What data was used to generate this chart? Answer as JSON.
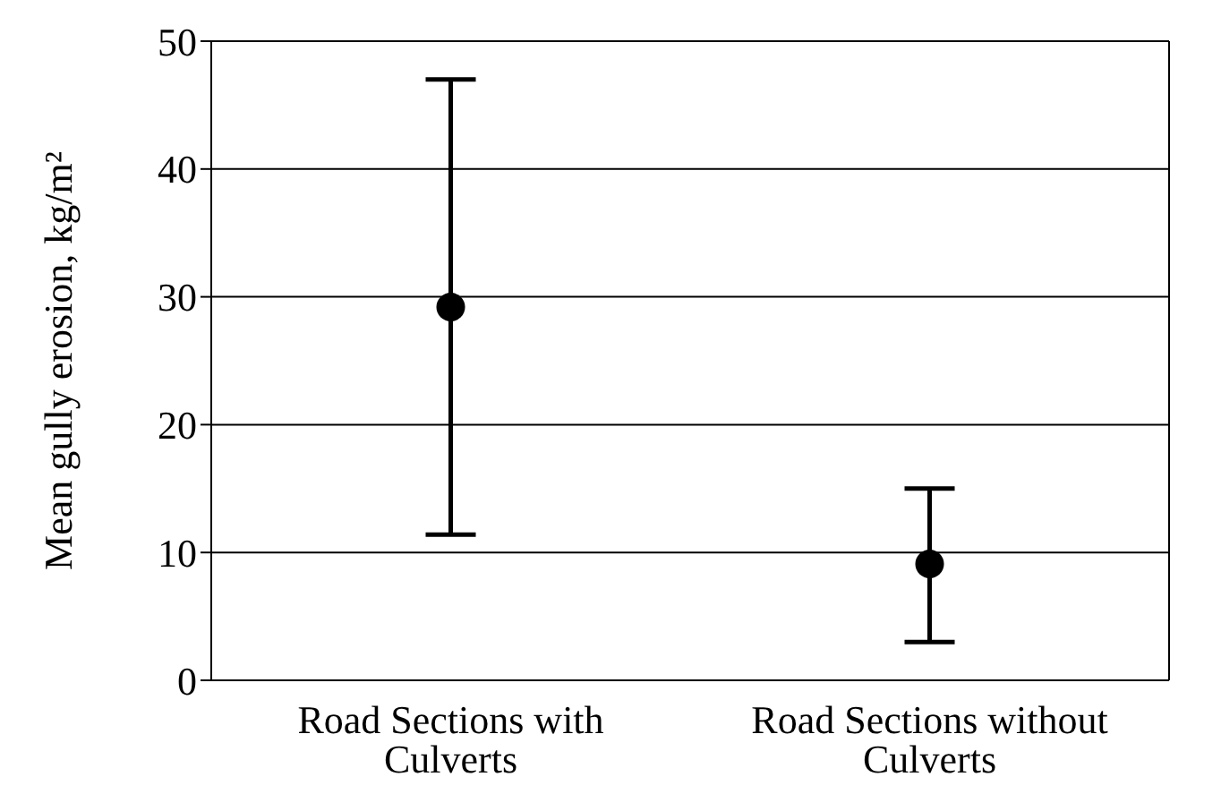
{
  "chart_data": {
    "type": "scatter",
    "ylabel": "Mean gully erosion, kg/m²",
    "categories": [
      "Road Sections with Culverts",
      "Road Sections without Culverts"
    ],
    "values": [
      29.2,
      9.1
    ],
    "errors": [
      [
        11.4,
        47.0
      ],
      [
        3.0,
        15.0
      ]
    ],
    "color": "#000000",
    "marker": "circle",
    "ylim": [
      0,
      50
    ],
    "yticks": [
      0,
      10,
      20,
      30,
      40,
      50
    ],
    "grid": "y",
    "legend": false
  }
}
